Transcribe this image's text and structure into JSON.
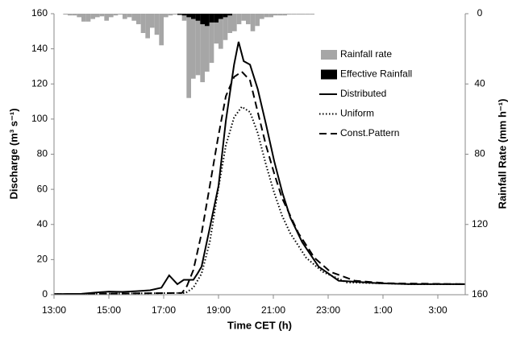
{
  "chart_data": {
    "type": "line",
    "xlabel": "Time CET (h)",
    "ylabel": "Discharge (m³ s⁻¹)",
    "y2label": "Rainfall Rate (mm h⁻¹)",
    "xlim": [
      780,
      1680
    ],
    "xticks": [
      {
        "value": 780,
        "label": "13:00"
      },
      {
        "value": 900,
        "label": "15:00"
      },
      {
        "value": 1020,
        "label": "17:00"
      },
      {
        "value": 1140,
        "label": "19:00"
      },
      {
        "value": 1260,
        "label": "21:00"
      },
      {
        "value": 1380,
        "label": "23:00"
      },
      {
        "value": 1500,
        "label": "1:00"
      },
      {
        "value": 1620,
        "label": "3:00"
      }
    ],
    "ylim": [
      0,
      160
    ],
    "yticks": [
      0,
      20,
      40,
      60,
      80,
      100,
      120,
      140,
      160
    ],
    "y2lim": [
      160,
      0
    ],
    "y2ticks": [
      0,
      40,
      80,
      120,
      160
    ],
    "series": [
      {
        "name": "Rainfall rate",
        "type": "bar",
        "axis": "y2",
        "color": "#a6a6a6",
        "x": [
          800,
          810,
          820,
          830,
          840,
          850,
          860,
          870,
          880,
          890,
          900,
          910,
          920,
          930,
          940,
          950,
          960,
          970,
          980,
          990,
          1000,
          1010,
          1020,
          1030,
          1040,
          1050,
          1060,
          1070,
          1080,
          1090,
          1100,
          1110,
          1120,
          1130,
          1140,
          1150,
          1160,
          1170,
          1180,
          1190,
          1200,
          1210,
          1220,
          1230,
          1240,
          1250,
          1260,
          1270,
          1280,
          1290,
          1300,
          1310,
          1320,
          1330,
          1340
        ],
        "values": [
          0.5,
          1,
          1,
          2,
          4.5,
          4.5,
          3,
          2,
          1.5,
          4,
          2,
          1,
          0.5,
          3,
          2,
          4,
          6,
          11,
          14,
          8,
          12,
          18,
          2,
          1,
          0.5,
          1,
          4,
          48,
          37,
          35,
          39,
          33,
          28,
          17,
          20,
          15,
          11,
          10,
          6,
          4,
          6,
          10,
          7,
          3,
          2,
          2,
          1,
          1,
          1,
          0.5,
          0.5,
          0.5,
          0.5,
          0.5,
          0.5
        ]
      },
      {
        "name": "Effective Rainfall",
        "type": "bar",
        "axis": "y2",
        "color": "#000000",
        "x": [
          1050,
          1060,
          1070,
          1080,
          1090,
          1100,
          1110,
          1120,
          1130,
          1140,
          1150,
          1160
        ],
        "values": [
          0.5,
          1,
          2,
          3,
          4,
          6,
          7,
          5,
          5,
          3,
          2,
          1
        ]
      },
      {
        "name": "Distributed",
        "type": "line",
        "dash": "solid",
        "color": "#000000",
        "x": [
          780,
          840,
          870,
          900,
          930,
          960,
          990,
          1015,
          1032,
          1050,
          1064,
          1085,
          1094,
          1103,
          1120,
          1140,
          1156,
          1174,
          1184,
          1195,
          1209,
          1226,
          1244,
          1262,
          1280,
          1297,
          1323,
          1359,
          1403,
          1491,
          1560,
          1680
        ],
        "values": [
          0.3,
          0.5,
          1.2,
          1.8,
          1.6,
          2,
          2.5,
          4,
          11,
          6,
          8.5,
          8.5,
          12,
          16,
          37,
          62,
          99,
          131,
          144,
          133,
          131,
          117,
          97,
          76,
          58,
          44,
          30,
          16,
          8,
          6.5,
          6,
          6
        ]
      },
      {
        "name": "Uniform",
        "type": "line",
        "dash": "dot",
        "color": "#000000",
        "x": [
          780,
          1068,
          1085,
          1103,
          1121,
          1138,
          1156,
          1174,
          1191,
          1209,
          1226,
          1244,
          1262,
          1279,
          1297,
          1332,
          1368,
          1421,
          1491,
          1560,
          1680
        ],
        "values": [
          0.3,
          1,
          4,
          12,
          30,
          58,
          85,
          101,
          107,
          104,
          92,
          74,
          58,
          45,
          35,
          21,
          13,
          7,
          6.5,
          6,
          6
        ]
      },
      {
        "name": "Const.Pattern",
        "type": "line",
        "dash": "dash",
        "color": "#000000",
        "x": [
          780,
          1060,
          1071,
          1085,
          1103,
          1121,
          1138,
          1156,
          1174,
          1191,
          1209,
          1226,
          1244,
          1262,
          1279,
          1315,
          1350,
          1385,
          1438,
          1509,
          1680
        ],
        "values": [
          0.3,
          1,
          5,
          14,
          35,
          62,
          88,
          113,
          124,
          127,
          122,
          104,
          85,
          69,
          55,
          35,
          21,
          13,
          8,
          6.5,
          6
        ]
      }
    ]
  }
}
